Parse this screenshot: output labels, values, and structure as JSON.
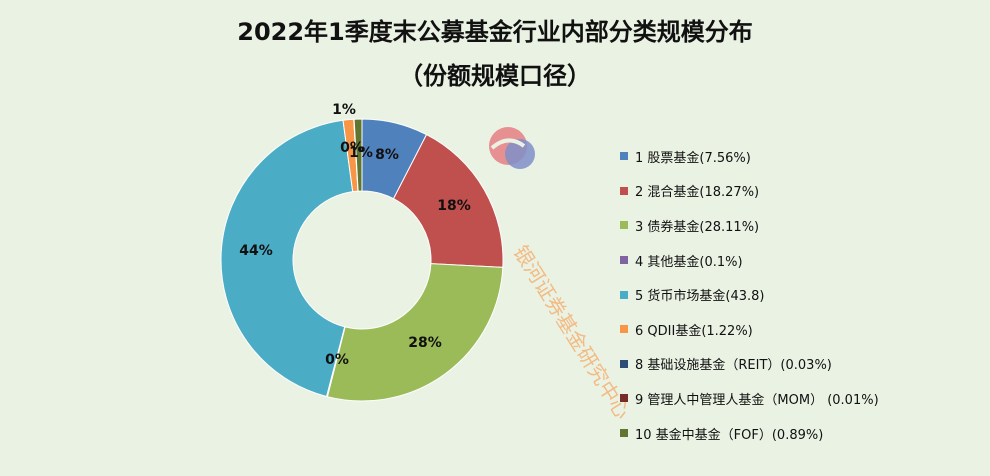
{
  "title": [
    "2022年1季度末公募基金行业内部分类规模分布",
    "（份额规模口径）"
  ],
  "watermark_text": "银河证券基金研究中心",
  "chart_data": {
    "type": "pie",
    "style": "donut",
    "legend_position": "right",
    "slices": [
      {
        "legend": "1 股票基金(7.56%)",
        "value": 7.56,
        "label": "8%",
        "color": "#4f81bd"
      },
      {
        "legend": "2 混合基金(18.27%)",
        "value": 18.27,
        "label": "18%",
        "color": "#c0504d"
      },
      {
        "legend": "3 债券基金(28.11%)",
        "value": 28.11,
        "label": "28%",
        "color": "#9bbb59"
      },
      {
        "legend": "4 其他基金(0.1%)",
        "value": 0.1,
        "label": "0%",
        "color": "#8064a2"
      },
      {
        "legend": "5 货币市场基金(43.8)",
        "value": 43.8,
        "label": "44%",
        "color": "#4bacc6"
      },
      {
        "legend": "6 QDII基金(1.22%)",
        "value": 1.22,
        "label": "1%",
        "color": "#f79646"
      },
      {
        "legend": "8 基础设施基金（REIT）(0.03%)",
        "value": 0.03,
        "label": "0%",
        "color": "#2c4d75"
      },
      {
        "legend": "9 管理人中管理人基金（MOM） (0.01%)",
        "value": 0.01,
        "label": "",
        "color": "#772c2a"
      },
      {
        "legend": "10 基金中基金（FOF）(0.89%)",
        "value": 0.89,
        "label": "1%",
        "color": "#5f7530"
      }
    ]
  }
}
